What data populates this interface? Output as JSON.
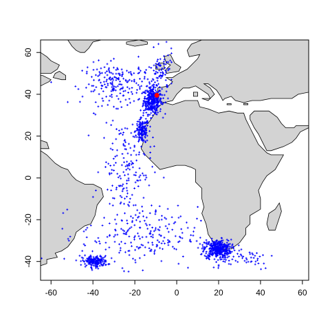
{
  "map": {
    "projection": "equirectangular lon/lat",
    "x_range": [
      -65,
      63
    ],
    "y_range": [
      -49,
      66
    ],
    "x_ticks": [
      -60,
      -40,
      -20,
      0,
      20,
      40,
      60
    ],
    "y_ticks": [
      -40,
      -20,
      0,
      20,
      40,
      60
    ],
    "x_tick_labels": [
      "-60",
      "-40",
      "-20",
      "0",
      "20",
      "40",
      "60"
    ],
    "y_tick_labels": [
      "-40",
      "-20",
      "0",
      "20",
      "40",
      "60"
    ],
    "colors": {
      "land": "#d3d3d3",
      "coast": "#000000",
      "points": "#0000ff",
      "origin": "#ff0000",
      "frame": "#000000"
    },
    "origin_point": {
      "lon": -9.5,
      "lat": 39.5
    },
    "clusters": [
      {
        "name": "west-iberia",
        "lon": -11.5,
        "lat": 37.0,
        "sd_lon": 2.2,
        "sd_lat": 3.2,
        "count": 340
      },
      {
        "name": "northwest-africa",
        "lon": -16.5,
        "lat": 22.5,
        "sd_lon": 1.6,
        "sd_lat": 3.0,
        "count": 150
      },
      {
        "name": "south-africa",
        "lon": 19.5,
        "lat": -34.0,
        "sd_lon": 3.2,
        "sd_lat": 2.2,
        "count": 360
      },
      {
        "name": "argentine-shelf",
        "lon": -39.0,
        "lat": -40.0,
        "sd_lon": 3.0,
        "sd_lat": 1.3,
        "count": 180
      },
      {
        "name": "north-atlantic",
        "lon": -28.0,
        "lat": 45.0,
        "sd_lon": 8.5,
        "sd_lat": 5.0,
        "count": 200
      },
      {
        "name": "english-channel",
        "lon": -7.5,
        "lat": 50.5,
        "sd_lon": 3.0,
        "sd_lat": 5.0,
        "count": 80
      },
      {
        "name": "mid-atlantic-corridor",
        "lon": -24.0,
        "lat": 5.0,
        "sd_lon": 6.0,
        "sd_lat": 12.0,
        "count": 160
      },
      {
        "name": "south-atlantic",
        "lon": -18.0,
        "lat": -28.0,
        "sd_lon": 14.0,
        "sd_lat": 7.0,
        "count": 220
      },
      {
        "name": "southern-indian",
        "lon": 30.0,
        "lat": -38.0,
        "sd_lon": 9.0,
        "sd_lat": 3.0,
        "count": 60
      }
    ],
    "land_polygons": [
      {
        "name": "south-america",
        "coords": [
          [
            -65,
            13
          ],
          [
            -62,
            11
          ],
          [
            -58,
            7
          ],
          [
            -55,
            5
          ],
          [
            -52,
            4
          ],
          [
            -50,
            1
          ],
          [
            -48,
            -1
          ],
          [
            -44,
            -3
          ],
          [
            -40,
            -3
          ],
          [
            -36,
            -5
          ],
          [
            -35,
            -9
          ],
          [
            -38,
            -13
          ],
          [
            -39,
            -18
          ],
          [
            -41,
            -22
          ],
          [
            -44,
            -23
          ],
          [
            -48,
            -26
          ],
          [
            -49,
            -29
          ],
          [
            -52,
            -33
          ],
          [
            -55,
            -35
          ],
          [
            -58,
            -36
          ],
          [
            -57,
            -38
          ],
          [
            -62,
            -39
          ],
          [
            -62,
            -41
          ],
          [
            -65,
            -42
          ]
        ]
      },
      {
        "name": "africa",
        "coords": [
          [
            -6,
            36
          ],
          [
            -9,
            34
          ],
          [
            -11,
            30
          ],
          [
            -13,
            27
          ],
          [
            -16,
            24
          ],
          [
            -17,
            21
          ],
          [
            -16,
            17
          ],
          [
            -17,
            14
          ],
          [
            -15,
            11
          ],
          [
            -13,
            9
          ],
          [
            -11,
            7
          ],
          [
            -8,
            4
          ],
          [
            -4,
            5
          ],
          [
            0,
            6
          ],
          [
            4,
            6
          ],
          [
            7,
            5
          ],
          [
            9,
            4
          ],
          [
            9,
            1
          ],
          [
            9,
            -2
          ],
          [
            12,
            -5
          ],
          [
            12,
            -10
          ],
          [
            13,
            -14
          ],
          [
            12,
            -17
          ],
          [
            14,
            -22
          ],
          [
            15,
            -27
          ],
          [
            17,
            -30
          ],
          [
            18,
            -33
          ],
          [
            20,
            -35
          ],
          [
            23,
            -34
          ],
          [
            26,
            -34
          ],
          [
            30,
            -31
          ],
          [
            33,
            -27
          ],
          [
            33,
            -24
          ],
          [
            35,
            -22
          ],
          [
            35,
            -18
          ],
          [
            40,
            -15
          ],
          [
            40,
            -10
          ],
          [
            39,
            -6
          ],
          [
            41,
            -2
          ],
          [
            43,
            1
          ],
          [
            47,
            4
          ],
          [
            51,
            11
          ],
          [
            45,
            11
          ],
          [
            43,
            12
          ],
          [
            39,
            16
          ],
          [
            37,
            20
          ],
          [
            35,
            24
          ],
          [
            33,
            28
          ],
          [
            32,
            31
          ],
          [
            29,
            31
          ],
          [
            25,
            32
          ],
          [
            20,
            31
          ],
          [
            15,
            33
          ],
          [
            11,
            34
          ],
          [
            10,
            37
          ],
          [
            4,
            37
          ],
          [
            -2,
            35
          ],
          [
            -6,
            36
          ]
        ]
      },
      {
        "name": "europe",
        "coords": [
          [
            -9,
            37
          ],
          [
            -9,
            43
          ],
          [
            -4,
            44
          ],
          [
            -2,
            46
          ],
          [
            -5,
            48
          ],
          [
            -2,
            48
          ],
          [
            1,
            50
          ],
          [
            5,
            52
          ],
          [
            8,
            55
          ],
          [
            10,
            57
          ],
          [
            11,
            59
          ],
          [
            6,
            58
          ],
          [
            5,
            61
          ],
          [
            7,
            64
          ],
          [
            12,
            66
          ],
          [
            63,
            66
          ],
          [
            63,
            41
          ],
          [
            58,
            40
          ],
          [
            55,
            38
          ],
          [
            48,
            38
          ],
          [
            45,
            38
          ],
          [
            40,
            37
          ],
          [
            36,
            37
          ],
          [
            32,
            36
          ],
          [
            28,
            37
          ],
          [
            26,
            39
          ],
          [
            23,
            38
          ],
          [
            22,
            37
          ],
          [
            21,
            39
          ],
          [
            19,
            42
          ],
          [
            15,
            45
          ],
          [
            13,
            45
          ],
          [
            16,
            43
          ],
          [
            18,
            40
          ],
          [
            16,
            38
          ],
          [
            15,
            40
          ],
          [
            12,
            42
          ],
          [
            9,
            44
          ],
          [
            6,
            43
          ],
          [
            3,
            43
          ],
          [
            0,
            40
          ],
          [
            -2,
            37
          ],
          [
            -6,
            36
          ],
          [
            -9,
            37
          ]
        ]
      },
      {
        "name": "arabia",
        "coords": [
          [
            63,
            25
          ],
          [
            57,
            25
          ],
          [
            56,
            24
          ],
          [
            52,
            24
          ],
          [
            50,
            26
          ],
          [
            48,
            29
          ],
          [
            44,
            32
          ],
          [
            37,
            32
          ],
          [
            35,
            30
          ],
          [
            35,
            28
          ],
          [
            37,
            24
          ],
          [
            39,
            21
          ],
          [
            42,
            15
          ],
          [
            43,
            13
          ],
          [
            45,
            13
          ],
          [
            51,
            15
          ],
          [
            55,
            17
          ],
          [
            57,
            19
          ],
          [
            59,
            22
          ],
          [
            63,
            24
          ]
        ]
      },
      {
        "name": "great-britain",
        "coords": [
          [
            -5,
            50
          ],
          [
            1,
            51
          ],
          [
            2,
            53
          ],
          [
            -1,
            55
          ],
          [
            -2,
            57
          ],
          [
            -3,
            59
          ],
          [
            -6,
            58
          ],
          [
            -5,
            55
          ],
          [
            -3,
            54
          ],
          [
            -5,
            52
          ],
          [
            -5,
            50
          ]
        ]
      },
      {
        "name": "ireland",
        "coords": [
          [
            -10,
            52
          ],
          [
            -6,
            52
          ],
          [
            -6,
            55
          ],
          [
            -8,
            55
          ],
          [
            -10,
            54
          ],
          [
            -10,
            52
          ]
        ]
      },
      {
        "name": "iceland",
        "coords": [
          [
            -24,
            65
          ],
          [
            -18,
            66
          ],
          [
            -14,
            65
          ],
          [
            -14,
            64
          ],
          [
            -20,
            63
          ],
          [
            -24,
            64
          ]
        ]
      },
      {
        "name": "madagascar",
        "coords": [
          [
            44,
            -25
          ],
          [
            47,
            -25
          ],
          [
            50,
            -16
          ],
          [
            49,
            -12
          ],
          [
            47,
            -15
          ],
          [
            44,
            -17
          ],
          [
            43,
            -22
          ]
        ]
      },
      {
        "name": "newfoundland",
        "coords": [
          [
            -59,
            48
          ],
          [
            -55,
            47
          ],
          [
            -53,
            47
          ],
          [
            -53,
            49
          ],
          [
            -56,
            51
          ],
          [
            -58,
            50
          ]
        ]
      },
      {
        "name": "north-america",
        "coords": [
          [
            -65,
            44
          ],
          [
            -63,
            45
          ],
          [
            -61,
            46
          ],
          [
            -60,
            47
          ],
          [
            -64,
            49
          ],
          [
            -67,
            49
          ],
          [
            -65,
            50
          ],
          [
            -60,
            50
          ],
          [
            -57,
            52
          ],
          [
            -56,
            54
          ],
          [
            -60,
            56
          ],
          [
            -62,
            58
          ],
          [
            -65,
            60
          ],
          [
            -65,
            44
          ]
        ]
      },
      {
        "name": "greenland",
        "coords": [
          [
            -46,
            60
          ],
          [
            -44,
            60
          ],
          [
            -42,
            62
          ],
          [
            -40,
            65
          ],
          [
            -36,
            66
          ],
          [
            -52,
            66
          ],
          [
            -50,
            63
          ],
          [
            -48,
            61
          ]
        ]
      },
      {
        "name": "cuba",
        "coords": [
          [
            -65,
            18
          ],
          [
            -62,
            17
          ],
          [
            -61,
            14
          ],
          [
            -65,
            14
          ]
        ]
      },
      {
        "name": "sicily",
        "coords": [
          [
            12,
            38
          ],
          [
            15,
            37
          ],
          [
            16,
            38
          ],
          [
            13,
            38
          ]
        ]
      },
      {
        "name": "sardinia",
        "coords": [
          [
            8,
            39
          ],
          [
            10,
            39
          ],
          [
            10,
            41
          ],
          [
            8,
            41
          ]
        ]
      },
      {
        "name": "crete",
        "coords": [
          [
            24,
            35
          ],
          [
            26,
            35
          ],
          [
            26,
            35.5
          ],
          [
            24,
            35.5
          ]
        ]
      },
      {
        "name": "cyprus",
        "coords": [
          [
            32,
            35
          ],
          [
            34,
            35
          ],
          [
            34,
            35.6
          ],
          [
            32,
            35.6
          ]
        ]
      }
    ]
  }
}
